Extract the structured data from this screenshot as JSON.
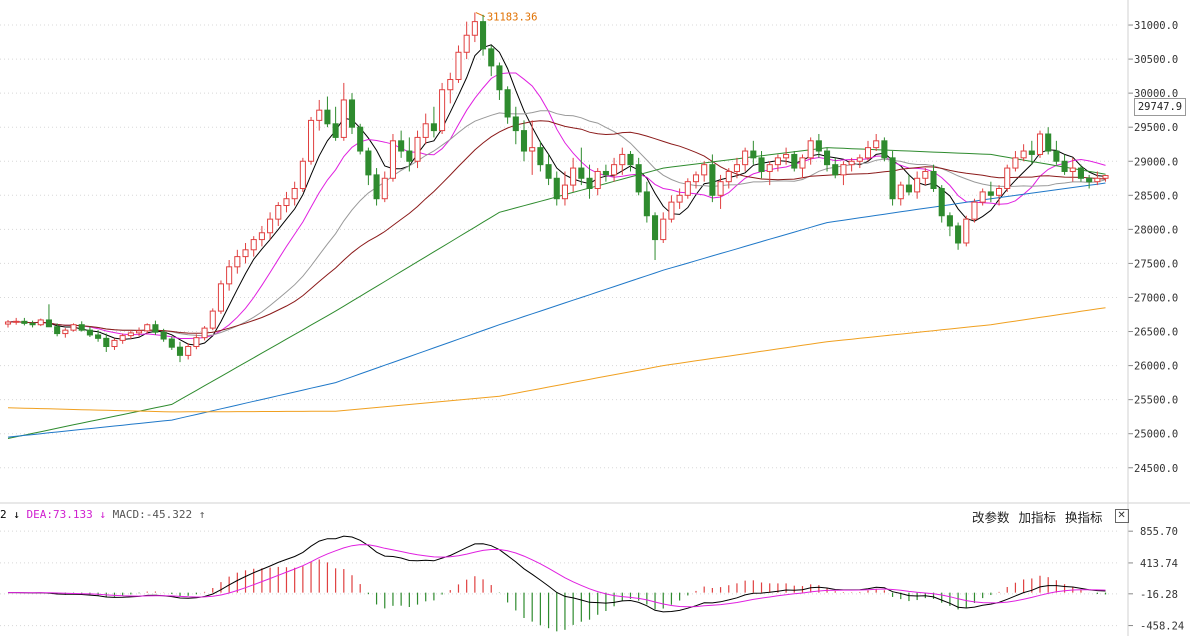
{
  "chart_data": [
    {
      "type": "candlestick",
      "price_axis": {
        "ticks": [
          31000,
          30500,
          30000,
          29500,
          29000,
          28500,
          28000,
          27500,
          27000,
          26500,
          26000,
          25500,
          25000,
          24500
        ],
        "tick_labels": [
          "31000.0",
          "30500.0",
          "30000.0",
          "29500.0",
          "29000.0",
          "28500.0",
          "28000.0",
          "27500.0",
          "27000.0",
          "26500.0",
          "26000.0",
          "25500.0",
          "25000.0",
          "24500.0"
        ],
        "range": [
          24100,
          31250
        ]
      },
      "current_price": "29747.9",
      "max_annotation": {
        "label": "31183.36",
        "value": 31183.36
      },
      "grid": true,
      "candles": [
        [
          26610,
          26670,
          26560,
          26640
        ],
        [
          26640,
          26700,
          26600,
          26650
        ],
        [
          26650,
          26700,
          26590,
          26620
        ],
        [
          26620,
          26660,
          26560,
          26600
        ],
        [
          26600,
          26690,
          26580,
          26670
        ],
        [
          26670,
          26900,
          26580,
          26570
        ],
        [
          26570,
          26620,
          26430,
          26470
        ],
        [
          26470,
          26550,
          26410,
          26520
        ],
        [
          26520,
          26620,
          26500,
          26600
        ],
        [
          26600,
          26650,
          26500,
          26520
        ],
        [
          26520,
          26570,
          26420,
          26450
        ],
        [
          26450,
          26520,
          26350,
          26400
        ],
        [
          26400,
          26470,
          26200,
          26280
        ],
        [
          26280,
          26400,
          26230,
          26370
        ],
        [
          26370,
          26470,
          26320,
          26440
        ],
        [
          26440,
          26520,
          26390,
          26480
        ],
        [
          26480,
          26560,
          26430,
          26510
        ],
        [
          26510,
          26620,
          26470,
          26600
        ],
        [
          26600,
          26660,
          26450,
          26490
        ],
        [
          26490,
          26540,
          26350,
          26390
        ],
        [
          26390,
          26430,
          26230,
          26270
        ],
        [
          26270,
          26350,
          26050,
          26150
        ],
        [
          26150,
          26330,
          26090,
          26280
        ],
        [
          26280,
          26460,
          26240,
          26410
        ],
        [
          26410,
          26580,
          26370,
          26550
        ],
        [
          26550,
          26840,
          26520,
          26800
        ],
        [
          26800,
          27250,
          26760,
          27200
        ],
        [
          27200,
          27550,
          27100,
          27450
        ],
        [
          27450,
          27700,
          27350,
          27600
        ],
        [
          27600,
          27800,
          27500,
          27700
        ],
        [
          27700,
          27900,
          27600,
          27850
        ],
        [
          27850,
          28050,
          27750,
          27950
        ],
        [
          27950,
          28250,
          27850,
          28150
        ],
        [
          28150,
          28400,
          28050,
          28350
        ],
        [
          28350,
          28550,
          28250,
          28450
        ],
        [
          28450,
          28700,
          28350,
          28600
        ],
        [
          28600,
          29050,
          28550,
          29000
        ],
        [
          29000,
          29650,
          28950,
          29600
        ],
        [
          29600,
          29900,
          29450,
          29750
        ],
        [
          29750,
          29950,
          29500,
          29550
        ],
        [
          29550,
          29800,
          29300,
          29350
        ],
        [
          29350,
          30150,
          29300,
          29900
        ],
        [
          29900,
          30000,
          29400,
          29500
        ],
        [
          29500,
          29550,
          29100,
          29150
        ],
        [
          29150,
          29200,
          28650,
          28800
        ],
        [
          28800,
          28900,
          28350,
          28450
        ],
        [
          28450,
          28850,
          28400,
          28750
        ],
        [
          28750,
          29400,
          28700,
          29300
        ],
        [
          29300,
          29450,
          29050,
          29150
        ],
        [
          29150,
          29350,
          28850,
          29000
        ],
        [
          29000,
          29450,
          28900,
          29350
        ],
        [
          29350,
          29700,
          29250,
          29550
        ],
        [
          29550,
          29800,
          29350,
          29450
        ],
        [
          29450,
          30150,
          29400,
          30050
        ],
        [
          30050,
          30300,
          29850,
          30200
        ],
        [
          30200,
          30700,
          30150,
          30600
        ],
        [
          30600,
          31050,
          30500,
          30850
        ],
        [
          30850,
          31183,
          30750,
          31050
        ],
        [
          31050,
          31150,
          30550,
          30650
        ],
        [
          30650,
          30700,
          30250,
          30400
        ],
        [
          30400,
          30450,
          29900,
          30050
        ],
        [
          30050,
          30100,
          29550,
          29650
        ],
        [
          29650,
          29800,
          29250,
          29450
        ],
        [
          29450,
          29600,
          29000,
          29150
        ],
        [
          29150,
          29600,
          28800,
          29200
        ],
        [
          29200,
          29300,
          28850,
          28950
        ],
        [
          28950,
          29100,
          28650,
          28750
        ],
        [
          28750,
          28850,
          28350,
          28450
        ],
        [
          28450,
          28850,
          28350,
          28650
        ],
        [
          28650,
          29050,
          28550,
          28900
        ],
        [
          28900,
          29200,
          28650,
          28750
        ],
        [
          28750,
          28950,
          28450,
          28600
        ],
        [
          28600,
          28900,
          28500,
          28850
        ],
        [
          28850,
          28950,
          28700,
          28800
        ],
        [
          28800,
          29050,
          28700,
          28950
        ],
        [
          28950,
          29200,
          28800,
          29100
        ],
        [
          29100,
          29150,
          28850,
          28950
        ],
        [
          28950,
          29050,
          28500,
          28550
        ],
        [
          28550,
          28700,
          28100,
          28200
        ],
        [
          28200,
          28250,
          27550,
          27850
        ],
        [
          27850,
          28250,
          27800,
          28150
        ],
        [
          28150,
          28500,
          28100,
          28400
        ],
        [
          28400,
          28600,
          28300,
          28500
        ],
        [
          28500,
          28750,
          28450,
          28700
        ],
        [
          28700,
          28850,
          28600,
          28800
        ],
        [
          28800,
          29000,
          28700,
          28950
        ],
        [
          28950,
          29100,
          28400,
          28500
        ],
        [
          28500,
          28800,
          28300,
          28700
        ],
        [
          28700,
          28900,
          28600,
          28850
        ],
        [
          28850,
          29050,
          28750,
          28950
        ],
        [
          28950,
          29200,
          28850,
          29150
        ],
        [
          29150,
          29300,
          28950,
          29050
        ],
        [
          29050,
          29150,
          28750,
          28850
        ],
        [
          28850,
          29000,
          28650,
          28950
        ],
        [
          28950,
          29100,
          28850,
          29050
        ],
        [
          29050,
          29200,
          28950,
          29100
        ],
        [
          29100,
          29150,
          28850,
          28900
        ],
        [
          28900,
          29100,
          28750,
          29050
        ],
        [
          29050,
          29350,
          28950,
          29300
        ],
        [
          29300,
          29400,
          29050,
          29150
        ],
        [
          29150,
          29200,
          28850,
          28950
        ],
        [
          28950,
          29050,
          28750,
          28800
        ],
        [
          28800,
          29000,
          28650,
          28950
        ],
        [
          28950,
          29050,
          28850,
          29000
        ],
        [
          29000,
          29100,
          28900,
          29050
        ],
        [
          29050,
          29300,
          29000,
          29200
        ],
        [
          29200,
          29400,
          29150,
          29300
        ],
        [
          29300,
          29350,
          29000,
          29050
        ],
        [
          29050,
          29150,
          28350,
          28450
        ],
        [
          28450,
          28700,
          28350,
          28650
        ],
        [
          28650,
          28800,
          28500,
          28550
        ],
        [
          28550,
          28850,
          28450,
          28750
        ],
        [
          28750,
          28900,
          28650,
          28850
        ],
        [
          28850,
          28950,
          28550,
          28600
        ],
        [
          28600,
          28650,
          28100,
          28200
        ],
        [
          28200,
          28250,
          27900,
          28050
        ],
        [
          28050,
          28100,
          27700,
          27800
        ],
        [
          27800,
          28200,
          27750,
          28150
        ],
        [
          28150,
          28450,
          28100,
          28400
        ],
        [
          28400,
          28600,
          28350,
          28550
        ],
        [
          28550,
          28700,
          28400,
          28500
        ],
        [
          28500,
          28650,
          28350,
          28600
        ],
        [
          28600,
          28950,
          28550,
          28900
        ],
        [
          28900,
          29150,
          28850,
          29050
        ],
        [
          29050,
          29250,
          29000,
          29150
        ],
        [
          29150,
          29300,
          28950,
          29100
        ],
        [
          29100,
          29450,
          29050,
          29400
        ],
        [
          29400,
          29500,
          29100,
          29150
        ],
        [
          29150,
          29300,
          28950,
          29000
        ],
        [
          29000,
          29100,
          28800,
          28850
        ],
        [
          28850,
          29050,
          28700,
          28900
        ],
        [
          28900,
          28950,
          28700,
          28750
        ],
        [
          28750,
          28800,
          28600,
          28700
        ],
        [
          28700,
          28850,
          28650,
          28750
        ],
        [
          28750,
          28800,
          28700,
          28790
        ]
      ],
      "moving_averages": [
        {
          "color": "#000000",
          "period": 5
        },
        {
          "color": "#e020e0",
          "period": 10
        },
        {
          "color": "#999999",
          "period": 20
        },
        {
          "color": "#8b1a1a",
          "period": 30
        },
        {
          "color": "#2e8b2e",
          "period": 60
        },
        {
          "color": "#1f78c8",
          "period": 120
        },
        {
          "color": "#f0a020",
          "period": 250
        }
      ],
      "long_ma_values": {
        "green": [
          [
            0,
            24930
          ],
          [
            20,
            25430
          ],
          [
            40,
            26800
          ],
          [
            60,
            28250
          ],
          [
            80,
            28900
          ],
          [
            100,
            29200
          ],
          [
            120,
            29100
          ],
          [
            134,
            28810
          ]
        ],
        "blue": [
          [
            0,
            24950
          ],
          [
            20,
            25200
          ],
          [
            40,
            25750
          ],
          [
            60,
            26600
          ],
          [
            80,
            27400
          ],
          [
            100,
            28100
          ],
          [
            120,
            28450
          ],
          [
            134,
            28680
          ]
        ],
        "orange": [
          [
            0,
            25380
          ],
          [
            20,
            25320
          ],
          [
            40,
            25330
          ],
          [
            60,
            25550
          ],
          [
            80,
            26000
          ],
          [
            100,
            26350
          ],
          [
            120,
            26600
          ],
          [
            134,
            26850
          ]
        ]
      }
    },
    {
      "type": "macd",
      "legend": {
        "dif_value": "2",
        "dif_arrow": "↓",
        "dea_label": "DEA:73.133",
        "dea_arrow": "↓",
        "macd_label": "MACD:-45.322",
        "macd_arrow": "↑"
      },
      "axis": {
        "ticks": [
          855.7,
          413.74,
          -16.28,
          -458.24
        ],
        "tick_labels": [
          "855.70",
          "413.74",
          "-16.28",
          "-458.24"
        ],
        "range": [
          -520,
          900
        ]
      },
      "colors": {
        "dif": "#000000",
        "dea": "#e020e0",
        "positive": "#e04040",
        "negative": "#2e8b2e"
      },
      "grid": true
    }
  ],
  "toolbar": {
    "params_label": "改参数",
    "add_label": "加指标",
    "switch_label": "换指标",
    "close_label": "✕"
  }
}
